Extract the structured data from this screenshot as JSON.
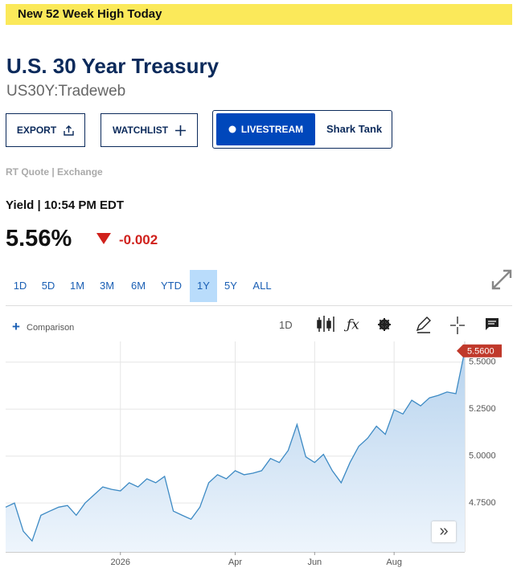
{
  "banner": "New 52 Week High Today",
  "header": {
    "title": "U.S. 30 Year Treasury",
    "symbol": "US30Y:Tradeweb"
  },
  "buttons": {
    "export": "EXPORT",
    "watchlist": "WATCHLIST",
    "livestream": "LIVESTREAM",
    "show": "Shark Tank"
  },
  "quote_source": "RT Quote | Exchange",
  "quote": {
    "label": "Yield | 10:54 PM EDT",
    "value": "5.56%",
    "change": "-0.002"
  },
  "ranges": [
    "1D",
    "5D",
    "1M",
    "3M",
    "6M",
    "YTD",
    "1Y",
    "5Y",
    "ALL"
  ],
  "selected_range": "1Y",
  "toolbar": {
    "comparison": "Comparison",
    "interval": "1D"
  },
  "chart_data": {
    "type": "line",
    "color": "#3d8ac4",
    "categories": [
      null,
      null,
      null,
      null,
      null,
      null,
      null,
      null,
      null,
      null,
      null,
      null,
      null,
      "2026",
      null,
      null,
      null,
      null,
      null,
      null,
      null,
      null,
      null,
      null,
      null,
      null,
      "Apr",
      null,
      null,
      null,
      null,
      null,
      null,
      null,
      null,
      "Jun",
      null,
      null,
      null,
      null,
      null,
      null,
      null,
      null,
      "Aug",
      null,
      null,
      null,
      null,
      null,
      null,
      null,
      null
    ],
    "values": [
      4.728,
      4.75,
      4.6,
      4.548,
      4.685,
      4.707,
      4.728,
      4.737,
      4.685,
      4.75,
      4.793,
      4.836,
      4.823,
      4.815,
      4.858,
      4.836,
      4.879,
      4.858,
      4.892,
      4.707,
      4.685,
      4.664,
      4.728,
      4.858,
      4.901,
      4.879,
      4.922,
      4.901,
      4.909,
      4.922,
      4.987,
      4.966,
      5.03,
      5.168,
      4.996,
      4.966,
      5.009,
      4.922,
      4.858,
      4.966,
      5.052,
      5.095,
      5.159,
      5.116,
      5.246,
      5.224,
      5.297,
      5.267,
      5.31,
      5.323,
      5.341,
      5.332,
      5.56
    ],
    "last_value_label": "5.5600",
    "ylim": [
      4.49,
      5.61
    ],
    "yticks": [
      {
        "value": 4.75,
        "label": "4.7500"
      },
      {
        "value": 5,
        "label": "5.0000"
      },
      {
        "value": 5.25,
        "label": "5.2500"
      },
      {
        "value": 5.5,
        "label": "5.5000"
      }
    ],
    "grid": true
  }
}
